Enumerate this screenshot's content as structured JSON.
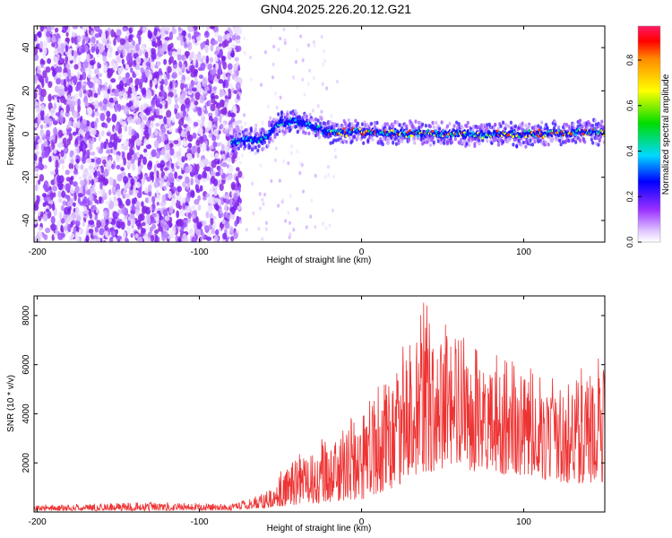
{
  "title": "GN04.2025.226.20.12.G21",
  "chart_data": [
    {
      "type": "heatmap",
      "xlabel": "Height of straight line (km)",
      "ylabel": "Frequency (Hz)",
      "xlim": [
        -202,
        150
      ],
      "ylim": [
        -50,
        50
      ],
      "xticks": [
        -200,
        -100,
        0,
        100
      ],
      "yticks": [
        -40,
        -20,
        0,
        20,
        40
      ],
      "colorbar": {
        "label": "Normalized spectral amplitude",
        "range": [
          0.0,
          0.95
        ],
        "ticks": [
          "0.0",
          "0.2",
          "0.4",
          "0.6",
          "0.8"
        ],
        "colormap": "rainbow"
      },
      "ridge": {
        "description_points": [
          {
            "x": -80,
            "y": -4
          },
          {
            "x": -70,
            "y": -3
          },
          {
            "x": -60,
            "y": -2
          },
          {
            "x": -50,
            "y": 5
          },
          {
            "x": -40,
            "y": 6
          },
          {
            "x": -30,
            "y": 3
          },
          {
            "x": -20,
            "y": 1
          },
          {
            "x": 0,
            "y": 1
          },
          {
            "x": 50,
            "y": 0
          },
          {
            "x": 100,
            "y": 0
          },
          {
            "x": 150,
            "y": 1
          }
        ],
        "noise_region_end_x": -75
      }
    },
    {
      "type": "line",
      "xlabel": "Height of straight line (km)",
      "ylabel": "SNR (10 * v/v)",
      "xlim": [
        -202,
        150
      ],
      "ylim": [
        0,
        8800
      ],
      "xticks": [
        -200,
        -100,
        0,
        100
      ],
      "yticks": [
        2000,
        4000,
        6000,
        8000
      ],
      "color": "#ee3333",
      "envelope": [
        {
          "x": -202,
          "lo": 50,
          "hi": 300
        },
        {
          "x": -130,
          "lo": 50,
          "hi": 400
        },
        {
          "x": -80,
          "lo": 60,
          "hi": 350
        },
        {
          "x": -60,
          "lo": 150,
          "hi": 800
        },
        {
          "x": -40,
          "lo": 300,
          "hi": 2500
        },
        {
          "x": -20,
          "lo": 400,
          "hi": 3200
        },
        {
          "x": 0,
          "lo": 500,
          "hi": 4200
        },
        {
          "x": 20,
          "lo": 1000,
          "hi": 6000
        },
        {
          "x": 35,
          "lo": 1500,
          "hi": 8700
        },
        {
          "x": 60,
          "lo": 1800,
          "hi": 7500
        },
        {
          "x": 80,
          "lo": 1500,
          "hi": 6500
        },
        {
          "x": 100,
          "lo": 1500,
          "hi": 6000
        },
        {
          "x": 120,
          "lo": 1200,
          "hi": 5500
        },
        {
          "x": 150,
          "lo": 1000,
          "hi": 6500
        }
      ]
    }
  ]
}
